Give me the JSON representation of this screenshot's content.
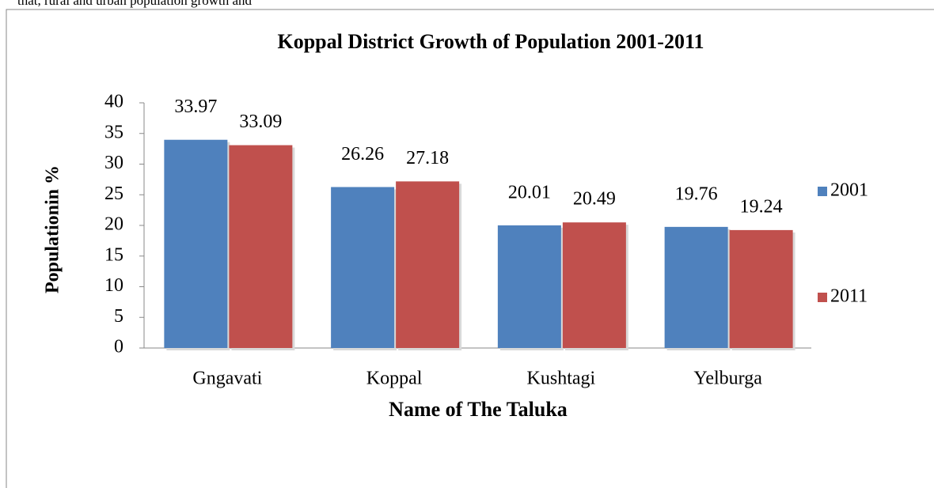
{
  "page_text": "that,  rural  and  urban  population  growth  and",
  "chart_data": {
    "type": "bar",
    "title": "Koppal District Growth of Population  2001-2011",
    "x_label": "Name of The Taluka",
    "y_label": "Populationin %",
    "categories": [
      "Gngavati",
      "Koppal",
      "Kushtagi",
      "Yelburga"
    ],
    "series": [
      {
        "name": "2001",
        "color": "#4f81bd",
        "values": [
          33.97,
          26.26,
          20.01,
          19.76
        ]
      },
      {
        "name": "2011",
        "color": "#c0504d",
        "values": [
          33.09,
          27.18,
          20.49,
          19.24
        ]
      }
    ],
    "ylim": [
      0,
      40
    ],
    "yticks": [
      0,
      5,
      10,
      15,
      20,
      25,
      30,
      35,
      40
    ],
    "grid": false,
    "legend": "right"
  }
}
